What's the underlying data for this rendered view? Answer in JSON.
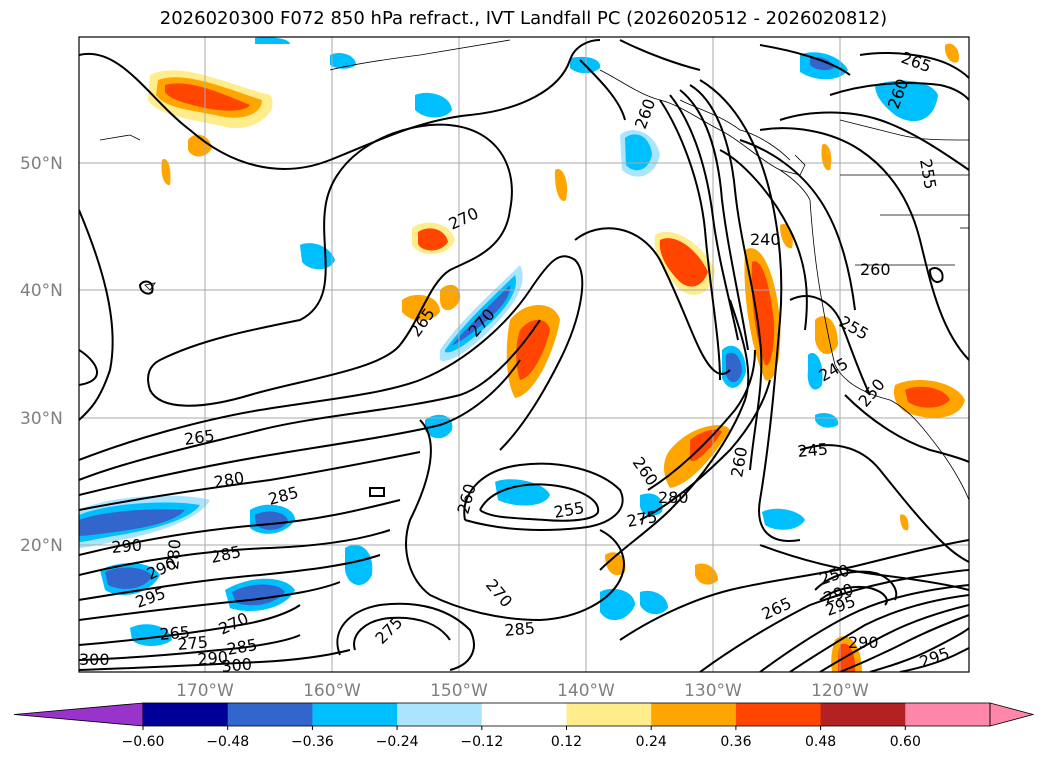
{
  "title": "2026020300 F072 850 hPa refract., IVT Landfall PC (2026020512 - 2026020812)",
  "lat_labels": [
    "50°N",
    "40°N",
    "30°N",
    "20°N"
  ],
  "lon_labels": [
    "170°W",
    "160°W",
    "150°W",
    "140°W",
    "130°W",
    "120°W"
  ],
  "contour_labels": [
    "265",
    "260",
    "255",
    "260",
    "270",
    "265",
    "270",
    "240",
    "260",
    "255",
    "245",
    "250",
    "265",
    "280",
    "285",
    "290",
    "280",
    "290",
    "285",
    "295",
    "265",
    "275",
    "270",
    "285",
    "290",
    "300",
    "260",
    "260",
    "255",
    "275",
    "280",
    "245",
    "260",
    "275",
    "270",
    "285",
    "265",
    "250",
    "290",
    "295",
    "290",
    "295",
    "300"
  ],
  "colorbar": {
    "ticks": [
      "−0.60",
      "−0.48",
      "−0.36",
      "−0.24",
      "−0.12",
      "0.12",
      "0.24",
      "0.36",
      "0.48",
      "0.60"
    ],
    "colors": [
      "#9933cc",
      "#000099",
      "#3366cc",
      "#00bfff",
      "#aae4ff",
      "#ffffff",
      "#ffec8b",
      "#ffa500",
      "#ff4500",
      "#b22222",
      "#ff88aa",
      "#ff88aa"
    ]
  }
}
